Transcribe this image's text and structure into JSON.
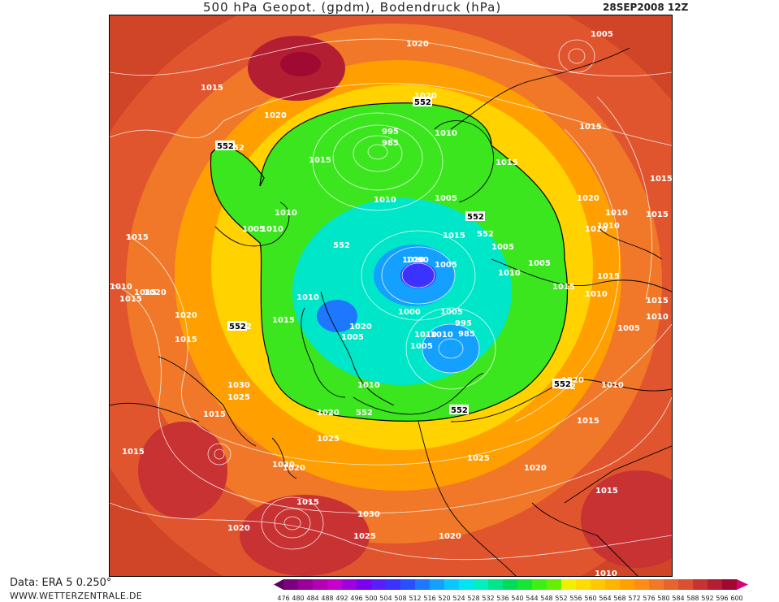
{
  "header": {
    "title": "500 hPa Geopot. (gpdm), Bodendruck (hPa)",
    "date": "28SEP2008 12Z"
  },
  "footer": {
    "source": "Data: ERA 5 0.250°",
    "website": "WWW.WETTERZENTRALE.DE"
  },
  "legend": {
    "levels": [
      "476",
      "480",
      "484",
      "488",
      "492",
      "496",
      "500",
      "504",
      "508",
      "512",
      "516",
      "520",
      "524",
      "528",
      "532",
      "536",
      "540",
      "544",
      "548",
      "552",
      "556",
      "560",
      "564",
      "568",
      "572",
      "576",
      "580",
      "584",
      "588",
      "592",
      "596",
      "600"
    ],
    "colors": [
      "#5b0060",
      "#7a007c",
      "#9a0098",
      "#b400b4",
      "#c800c8",
      "#a000e0",
      "#7a00ee",
      "#5a1ef8",
      "#3c32ff",
      "#2850ff",
      "#1e78ff",
      "#14a0ff",
      "#0ac8ff",
      "#00e6f0",
      "#00f0c0",
      "#00e68c",
      "#00dc5a",
      "#14e632",
      "#3cf014",
      "#64f000",
      "#f0f000",
      "#ffdc00",
      "#ffc800",
      "#ffb400",
      "#ffa000",
      "#ff8c14",
      "#f07828",
      "#e6642d",
      "#dc5032",
      "#c83232",
      "#b41e32",
      "#a00a32",
      "#dc0078"
    ]
  },
  "map": {
    "highlight_level": "552",
    "pressure_labels": [
      "1020",
      "1005",
      "1015",
      "1020",
      "552",
      "1010",
      "995",
      "985",
      "1015",
      "1020",
      "1010",
      "1015",
      "1000",
      "1005",
      "1010",
      "1015",
      "552",
      "552",
      "1010",
      "1010",
      "1015",
      "1005",
      "1010",
      "1015",
      "1020",
      "1015",
      "1010",
      "1015",
      "1005",
      "1010",
      "1015",
      "1020",
      "1015",
      "1010",
      "1020",
      "1020",
      "1000",
      "1010",
      "1005",
      "1010",
      "1015",
      "1005",
      "1010",
      "1015",
      "1020",
      "552",
      "1010",
      "1015",
      "1005",
      "1005",
      "1005",
      "1010",
      "1005",
      "995",
      "985",
      "1015",
      "1030",
      "1025",
      "552",
      "1010",
      "1015",
      "1010",
      "1020",
      "1015",
      "552",
      "1020",
      "1025",
      "1015",
      "1030",
      "1020",
      "1025",
      "1020",
      "1015",
      "1015",
      "1020",
      "1030",
      "1025",
      "1020",
      "1010",
      "1015"
    ],
    "contour_labels": [
      "552",
      "552",
      "552",
      "552",
      "552",
      "552"
    ]
  }
}
